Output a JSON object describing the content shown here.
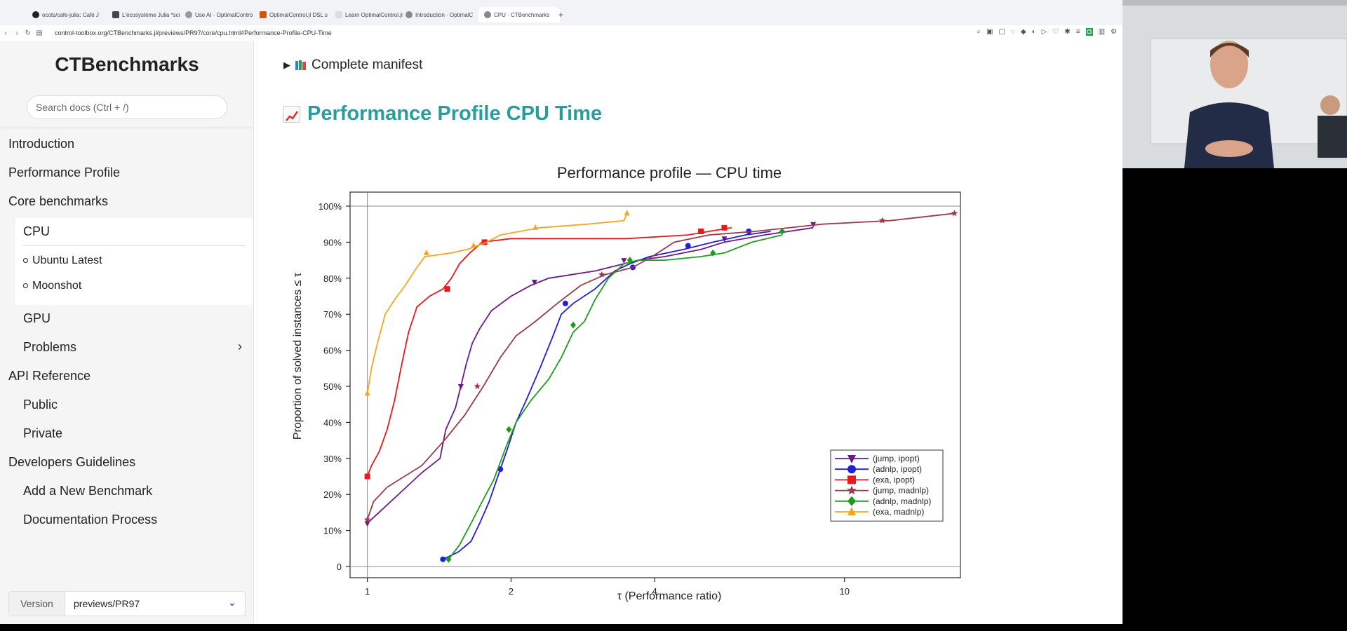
{
  "browser": {
    "tabs": [
      {
        "label": "ocots/cafe-julia: Café J",
        "color": "#333"
      },
      {
        "label": "L'écosystème Julia *sci",
        "color": "#555"
      },
      {
        "label": "Use AI · OptimalContro",
        "color": "#555"
      },
      {
        "label": "OptimalControl.jl DSL s",
        "color": "#d35400"
      },
      {
        "label": "Learn OptimalControl.jl",
        "color": "#888"
      },
      {
        "label": "Introduction · OptimalC",
        "color": "#555"
      },
      {
        "label": "CPU · CTBenchmarks",
        "color": "#555"
      }
    ],
    "new_tab": "+",
    "url": "control-toolbox.org/CTBenchmarks.jl/previews/PR97/core/cpu.html#Performance-Profile-CPU-Time"
  },
  "sidebar": {
    "title": "CTBenchmarks",
    "search_placeholder": "Search docs (Ctrl + /)",
    "items": [
      {
        "label": "Introduction"
      },
      {
        "label": "Performance Profile"
      },
      {
        "label": "Core benchmarks"
      },
      {
        "label": "CPU"
      },
      {
        "label": "Ubuntu Latest"
      },
      {
        "label": "Moonshot"
      },
      {
        "label": "GPU"
      },
      {
        "label": "Problems"
      },
      {
        "label": "API Reference"
      },
      {
        "label": "Public"
      },
      {
        "label": "Private"
      },
      {
        "label": "Developers Guidelines"
      },
      {
        "label": "Add a New Benchmark"
      },
      {
        "label": "Documentation Process"
      }
    ],
    "version_label": "Version",
    "version_value": "previews/PR97"
  },
  "main": {
    "manifest_label": "Complete manifest",
    "section_heading": "Performance Profile CPU Time"
  },
  "chart_data": {
    "type": "line",
    "title": "Performance profile — CPU time",
    "xlabel": "τ (Performance ratio)",
    "ylabel": "Proportion of solved instances ≤ τ",
    "xscale": "log2",
    "xlim": [
      0.92,
      17.5
    ],
    "ylim": [
      0,
      100
    ],
    "x_ticks": [
      1,
      2,
      4,
      10
    ],
    "x_tick_labels": [
      "1",
      "2",
      "4",
      "10"
    ],
    "y_ticks": [
      0,
      10,
      20,
      30,
      40,
      50,
      60,
      70,
      80,
      90,
      100
    ],
    "y_tick_labels": [
      "0",
      "10%",
      "20%",
      "30%",
      "40%",
      "50%",
      "60%",
      "70%",
      "80%",
      "90%",
      "100%"
    ],
    "legend_position": "bottom-right",
    "series": [
      {
        "name": "(jump, ipopt)",
        "color": "#6a1b8a",
        "marker": "triangle-down",
        "points": [
          [
            1.0,
            12
          ],
          [
            1.3,
            26
          ],
          [
            1.42,
            30
          ],
          [
            1.46,
            38
          ],
          [
            1.53,
            44
          ],
          [
            1.57,
            50
          ],
          [
            1.61,
            56
          ],
          [
            1.66,
            62
          ],
          [
            1.72,
            66
          ],
          [
            1.82,
            71
          ],
          [
            2.0,
            75
          ],
          [
            2.2,
            78
          ],
          [
            2.4,
            80
          ],
          [
            3.0,
            82
          ],
          [
            3.45,
            84
          ],
          [
            3.7,
            85
          ],
          [
            4.2,
            86
          ],
          [
            5.0,
            88
          ],
          [
            5.6,
            90
          ],
          [
            6.8,
            92
          ],
          [
            8.6,
            94
          ]
        ],
        "markers": [
          [
            1.0,
            12
          ],
          [
            1.57,
            50
          ],
          [
            2.24,
            79
          ],
          [
            3.45,
            85
          ],
          [
            5.6,
            91
          ],
          [
            8.6,
            95
          ]
        ]
      },
      {
        "name": "(adnlp, ipopt)",
        "color": "#1f1fd6",
        "marker": "circle",
        "points": [
          [
            1.44,
            2
          ],
          [
            1.55,
            4
          ],
          [
            1.65,
            7
          ],
          [
            1.72,
            12
          ],
          [
            1.8,
            18
          ],
          [
            1.9,
            27
          ],
          [
            1.97,
            33
          ],
          [
            2.05,
            40
          ],
          [
            2.15,
            46
          ],
          [
            2.3,
            55
          ],
          [
            2.45,
            64
          ],
          [
            2.55,
            70
          ],
          [
            2.7,
            73
          ],
          [
            3.0,
            77
          ],
          [
            3.3,
            82
          ],
          [
            3.55,
            84
          ],
          [
            3.9,
            86
          ],
          [
            4.6,
            88
          ],
          [
            5.3,
            90
          ],
          [
            6.2,
            92
          ],
          [
            7.0,
            93
          ]
        ],
        "markers": [
          [
            1.44,
            2
          ],
          [
            1.9,
            27
          ],
          [
            2.6,
            73
          ],
          [
            3.6,
            83
          ],
          [
            4.7,
            89
          ],
          [
            6.3,
            93
          ]
        ]
      },
      {
        "name": "(exa, ipopt)",
        "color": "#e8181c",
        "marker": "square",
        "points": [
          [
            1.0,
            25
          ],
          [
            1.02,
            28
          ],
          [
            1.06,
            32
          ],
          [
            1.1,
            38
          ],
          [
            1.14,
            46
          ],
          [
            1.18,
            56
          ],
          [
            1.22,
            65
          ],
          [
            1.27,
            72
          ],
          [
            1.35,
            75
          ],
          [
            1.44,
            77
          ],
          [
            1.5,
            80
          ],
          [
            1.56,
            84
          ],
          [
            1.64,
            87
          ],
          [
            1.74,
            90
          ],
          [
            2.0,
            91
          ],
          [
            2.6,
            91
          ],
          [
            3.5,
            91
          ],
          [
            4.7,
            92
          ],
          [
            5.2,
            93
          ],
          [
            5.8,
            94
          ]
        ],
        "markers": [
          [
            1.0,
            25
          ],
          [
            1.47,
            77
          ],
          [
            1.76,
            90
          ],
          [
            5.0,
            93
          ],
          [
            5.6,
            94
          ]
        ]
      },
      {
        "name": "(jump, madnlp)",
        "color": "#9a3a4a",
        "marker": "star",
        "points": [
          [
            1.0,
            13
          ],
          [
            1.03,
            18
          ],
          [
            1.1,
            22
          ],
          [
            1.3,
            28
          ],
          [
            1.45,
            35
          ],
          [
            1.6,
            42
          ],
          [
            1.75,
            50
          ],
          [
            1.9,
            58
          ],
          [
            2.05,
            64
          ],
          [
            2.25,
            68
          ],
          [
            2.5,
            73
          ],
          [
            2.8,
            78
          ],
          [
            3.15,
            81
          ],
          [
            3.6,
            83
          ],
          [
            3.95,
            86
          ],
          [
            4.4,
            90
          ],
          [
            5.2,
            92
          ],
          [
            6.5,
            93
          ],
          [
            9.0,
            95
          ],
          [
            12.5,
            96
          ],
          [
            17.0,
            98
          ]
        ],
        "markers": [
          [
            1.0,
            13
          ],
          [
            1.7,
            50
          ],
          [
            3.1,
            81
          ],
          [
            12.0,
            96
          ],
          [
            17.0,
            98
          ]
        ]
      },
      {
        "name": "(adnlp, madnlp)",
        "color": "#1f9a1f",
        "marker": "diamond",
        "points": [
          [
            1.48,
            2
          ],
          [
            1.56,
            6
          ],
          [
            1.65,
            12
          ],
          [
            1.74,
            18
          ],
          [
            1.84,
            24
          ],
          [
            1.95,
            33
          ],
          [
            2.05,
            40
          ],
          [
            2.2,
            46
          ],
          [
            2.4,
            52
          ],
          [
            2.55,
            58
          ],
          [
            2.7,
            65
          ],
          [
            2.85,
            68
          ],
          [
            3.0,
            74
          ],
          [
            3.2,
            80
          ],
          [
            3.45,
            84
          ],
          [
            3.7,
            85
          ],
          [
            4.2,
            85
          ],
          [
            5.0,
            86
          ],
          [
            5.6,
            87
          ],
          [
            6.4,
            90
          ],
          [
            7.4,
            92
          ]
        ],
        "markers": [
          [
            1.48,
            2
          ],
          [
            1.98,
            38
          ],
          [
            2.7,
            67
          ],
          [
            3.55,
            85
          ],
          [
            5.3,
            87
          ],
          [
            7.4,
            93
          ]
        ]
      },
      {
        "name": "(exa, madnlp)",
        "color": "#f5a623",
        "marker": "triangle-up",
        "points": [
          [
            1.0,
            48
          ],
          [
            1.02,
            55
          ],
          [
            1.05,
            62
          ],
          [
            1.09,
            70
          ],
          [
            1.14,
            74
          ],
          [
            1.2,
            78
          ],
          [
            1.27,
            83
          ],
          [
            1.32,
            86
          ],
          [
            1.5,
            87
          ],
          [
            1.62,
            88
          ],
          [
            1.78,
            90
          ],
          [
            1.9,
            92
          ],
          [
            2.3,
            94
          ],
          [
            2.9,
            95
          ],
          [
            3.45,
            96
          ],
          [
            3.5,
            98
          ]
        ],
        "markers": [
          [
            1.0,
            48
          ],
          [
            1.33,
            87
          ],
          [
            1.67,
            89
          ],
          [
            2.25,
            94
          ],
          [
            3.5,
            98
          ]
        ]
      }
    ]
  }
}
